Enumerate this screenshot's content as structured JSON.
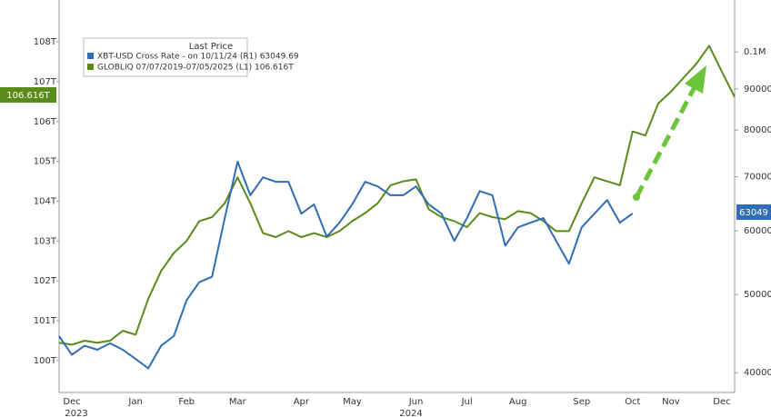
{
  "chart_data": {
    "type": "line",
    "legend_title": "Last Price",
    "left_tag": "106.616T",
    "right_tag": "63049",
    "x_year_labels": [
      "2023",
      "2024"
    ],
    "categories": [
      null,
      "Dec",
      null,
      null,
      null,
      null,
      "Jan",
      null,
      null,
      null,
      "Feb",
      null,
      null,
      null,
      "Mar",
      null,
      null,
      null,
      null,
      "Apr",
      null,
      null,
      null,
      "May",
      null,
      null,
      null,
      null,
      "Jun",
      null,
      null,
      null,
      "Jul",
      null,
      null,
      null,
      "Aug",
      null,
      null,
      null,
      null,
      "Sep",
      null,
      null,
      null,
      "Oct",
      null,
      null,
      "Nov",
      null,
      null,
      null,
      "Dec",
      null
    ],
    "series": [
      {
        "name": "GLOBLIQ 07/07/2019-07/05/2025 (L1) 106.616T",
        "color": "#5a8a1a",
        "values": [
          100.45,
          100.4,
          100.5,
          100.45,
          100.5,
          100.75,
          100.65,
          101.55,
          102.25,
          102.7,
          103.0,
          103.5,
          103.6,
          103.95,
          104.6,
          103.95,
          103.2,
          103.1,
          103.25,
          103.1,
          103.2,
          103.1,
          103.25,
          103.5,
          103.7,
          103.95,
          104.4,
          104.5,
          104.55,
          103.8,
          103.6,
          103.5,
          103.35,
          103.7,
          103.6,
          103.55,
          103.75,
          103.7,
          103.5,
          103.25,
          103.25,
          103.95,
          104.6,
          104.5,
          104.4,
          105.75,
          105.65,
          106.45,
          106.75,
          107.1,
          107.45,
          107.9,
          107.25,
          106.616
        ]
      },
      {
        "name": "XBT-USD Cross Rate - on 10/11/24 (R1) 63049.69",
        "color": "#2f6db5",
        "axis": "y2",
        "values": [
          44400,
          42100,
          43200,
          42700,
          43500,
          42700,
          41600,
          40500,
          43200,
          44400,
          49200,
          51800,
          52600,
          62200,
          73100,
          66400,
          69900,
          69000,
          69000,
          63000,
          64700,
          59000,
          61400,
          64700,
          69000,
          68100,
          66400,
          66400,
          68100,
          64700,
          63000,
          58300,
          62200,
          67200,
          66400,
          57500,
          60600,
          61400,
          62200,
          58300,
          54600,
          60600,
          63000,
          65500,
          61400,
          63049.69,
          null,
          null,
          null,
          null,
          null,
          null,
          null,
          null
        ]
      }
    ],
    "ylim": [
      99.2,
      109.05
    ],
    "yticks": [
      {
        "value": 100,
        "label": "100T"
      },
      {
        "value": 101,
        "label": "101T"
      },
      {
        "value": 102,
        "label": "102T"
      },
      {
        "value": 103,
        "label": "103T"
      },
      {
        "value": 104,
        "label": "104T"
      },
      {
        "value": 105,
        "label": "105T"
      },
      {
        "value": 106,
        "label": "106T"
      },
      {
        "value": 107,
        "label": "107T"
      },
      {
        "value": 108,
        "label": "108T"
      }
    ],
    "y2lim": [
      37800,
      116000
    ],
    "y2log": true,
    "y2ticks": [
      40000,
      50000,
      60000,
      70000,
      80000,
      90000,
      {
        "value": 100000,
        "label": "0.1M"
      }
    ],
    "grid": false
  }
}
